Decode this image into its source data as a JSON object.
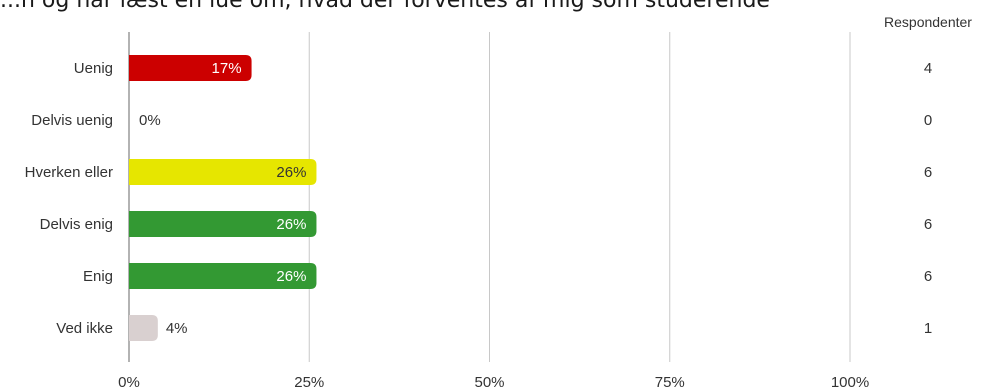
{
  "title": "...n og har læst en lue om, hvad der forventes af mig som studerende",
  "chart_data": {
    "type": "bar",
    "orientation": "horizontal",
    "title": "...n og har læst en lue om, hvad der forventes af mig som studerende",
    "categories": [
      "Uenig",
      "Delvis uenig",
      "Hverken eller",
      "Delvis enig",
      "Enig",
      "Ved ikke"
    ],
    "values": [
      17,
      0,
      26,
      26,
      26,
      4
    ],
    "value_labels": [
      "17%",
      "0%",
      "26%",
      "26%",
      "26%",
      "4%"
    ],
    "respondents_header": "Respondenter",
    "respondents": [
      "4",
      "0",
      "6",
      "6",
      "6",
      "1"
    ],
    "colors": [
      "#cc0000",
      "#cccccc",
      "#e6e600",
      "#339933",
      "#339933",
      "#d9d0d0"
    ],
    "label_colors": [
      "#ffffff",
      "#333333",
      "#333333",
      "#ffffff",
      "#ffffff",
      "#333333"
    ],
    "xlim": [
      0,
      100
    ],
    "x_ticks": [
      "0%",
      "25%",
      "50%",
      "75%",
      "100%"
    ],
    "grid": true
  }
}
